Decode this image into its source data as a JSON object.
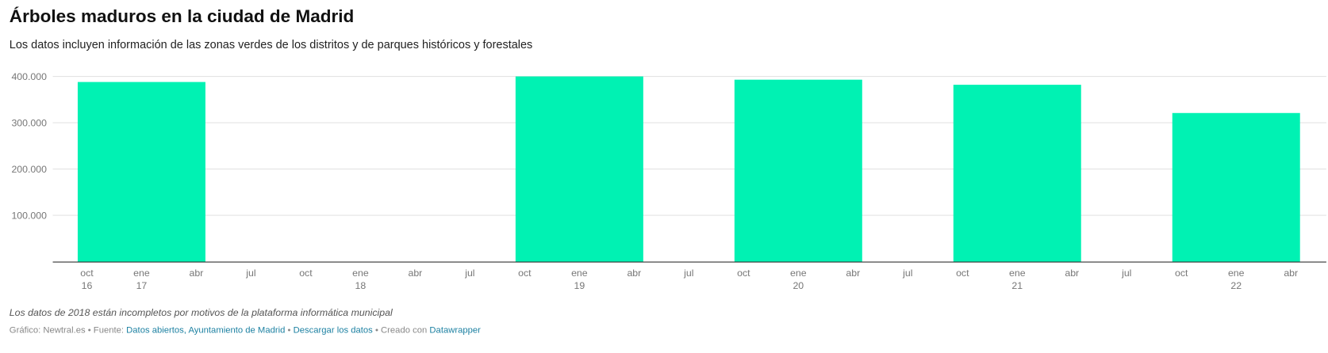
{
  "title": "Árboles maduros en la ciudad de Madrid",
  "subtitle": "Los datos incluyen información de las zonas verdes de los distritos y de parques históricos y forestales",
  "chart_data": {
    "type": "bar",
    "title": "Árboles maduros en la ciudad de Madrid",
    "xlabel": "",
    "ylabel": "",
    "ylim": [
      0,
      400000
    ],
    "yticks": [
      100000,
      200000,
      300000,
      400000
    ],
    "ytick_labels": [
      "100.000",
      "200.000",
      "300.000",
      "400.000"
    ],
    "x": [
      "2017-01",
      "2019-01",
      "2020-01",
      "2021-01",
      "2022-01"
    ],
    "values": [
      388000,
      400000,
      393000,
      382000,
      321000
    ],
    "xlim": [
      "2016-10",
      "2022-04"
    ],
    "xticks": [
      {
        "m": "oct",
        "y": "16"
      },
      {
        "m": "ene",
        "y": "17"
      },
      {
        "m": "abr",
        "y": ""
      },
      {
        "m": "jul",
        "y": ""
      },
      {
        "m": "oct",
        "y": ""
      },
      {
        "m": "ene",
        "y": "18"
      },
      {
        "m": "abr",
        "y": ""
      },
      {
        "m": "jul",
        "y": ""
      },
      {
        "m": "oct",
        "y": ""
      },
      {
        "m": "ene",
        "y": "19"
      },
      {
        "m": "abr",
        "y": ""
      },
      {
        "m": "jul",
        "y": ""
      },
      {
        "m": "oct",
        "y": ""
      },
      {
        "m": "ene",
        "y": "20"
      },
      {
        "m": "abr",
        "y": ""
      },
      {
        "m": "jul",
        "y": ""
      },
      {
        "m": "oct",
        "y": ""
      },
      {
        "m": "ene",
        "y": "21"
      },
      {
        "m": "abr",
        "y": ""
      },
      {
        "m": "jul",
        "y": ""
      },
      {
        "m": "oct",
        "y": ""
      },
      {
        "m": "ene",
        "y": "22"
      },
      {
        "m": "abr",
        "y": ""
      }
    ],
    "grid": true,
    "bar_color": "#00f2b3"
  },
  "footer": {
    "note": "Los datos de 2018 están incompletos por motivos de la plataforma informática municipal",
    "credit_prefix": "Gráfico: Newtral.es • Fuente: ",
    "source_link": "Datos abiertos, Ayuntamiento de Madrid",
    "sep1": " • ",
    "download_link": "Descargar los datos",
    "sep2": " • Creado con ",
    "tool_link": "Datawrapper"
  }
}
